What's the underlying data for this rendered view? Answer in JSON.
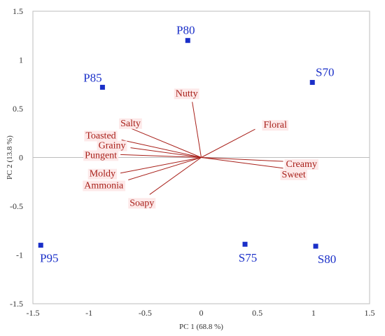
{
  "chart_data": {
    "type": "scatter",
    "xlabel": "PC 1 (68.8 %)",
    "ylabel": "PC 2 (13.8 %)",
    "xlim": [
      -1.5,
      1.5
    ],
    "ylim": [
      -1.5,
      1.5
    ],
    "xticks": [
      "-1.5",
      "-1",
      "-0.5",
      "0",
      "0.5",
      "1",
      "1.5"
    ],
    "yticks": [
      "1.5",
      "1",
      "0.5",
      "0",
      "-0.5",
      "-1",
      "-1.5"
    ],
    "xtick_values": [
      -1.5,
      -1,
      -0.5,
      0,
      0.5,
      1,
      1.5
    ],
    "ytick_values": [
      1.5,
      1,
      0.5,
      0,
      -0.5,
      -1,
      -1.5
    ],
    "grid": false,
    "samples": [
      {
        "name": "P80",
        "x": -0.12,
        "y": 1.2
      },
      {
        "name": "P85",
        "x": -0.88,
        "y": 0.72
      },
      {
        "name": "S70",
        "x": 0.99,
        "y": 0.77
      },
      {
        "name": "P95",
        "x": -1.43,
        "y": -0.9
      },
      {
        "name": "S75",
        "x": 0.39,
        "y": -0.89
      },
      {
        "name": "S80",
        "x": 1.02,
        "y": -0.91
      }
    ],
    "attributes": [
      {
        "name": "Nutty",
        "x": -0.08,
        "y": 0.57
      },
      {
        "name": "Floral",
        "x": 0.48,
        "y": 0.29
      },
      {
        "name": "Salty",
        "x": -0.63,
        "y": 0.3
      },
      {
        "name": "Toasted",
        "x": -0.71,
        "y": 0.18
      },
      {
        "name": "Grainy",
        "x": -0.63,
        "y": 0.1
      },
      {
        "name": "Pungent",
        "x": -0.72,
        "y": 0.03
      },
      {
        "name": "Creamy",
        "x": 0.73,
        "y": -0.04
      },
      {
        "name": "Sweet",
        "x": 0.73,
        "y": -0.11
      },
      {
        "name": "Moldy",
        "x": -0.72,
        "y": -0.16
      },
      {
        "name": "Ammonia",
        "x": -0.65,
        "y": -0.23
      },
      {
        "name": "Soapy",
        "x": -0.46,
        "y": -0.38
      }
    ],
    "colors": {
      "samples": "#1a2fc8",
      "attributes": "#a8201a"
    }
  }
}
